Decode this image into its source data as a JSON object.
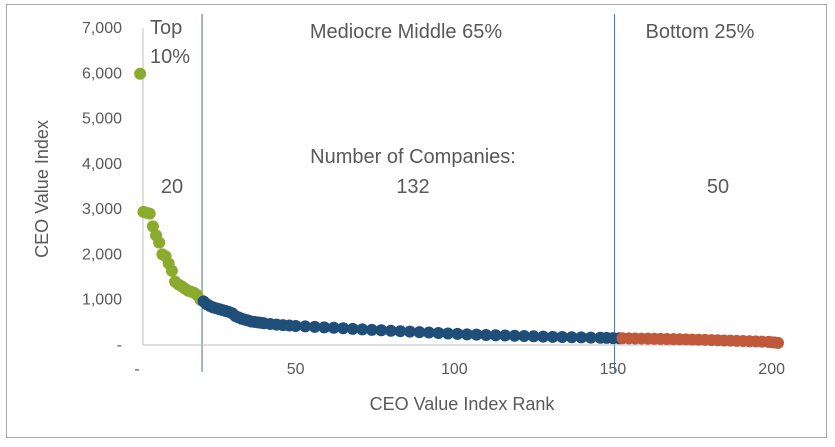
{
  "colors": {
    "top": "#8aab2e",
    "middle": "#1f4e79",
    "bottom": "#c0583a",
    "divider": "#4a6f9c",
    "axis": "#bfbfbf",
    "text": "#595959"
  },
  "chart_data": {
    "type": "scatter",
    "xlabel": "CEO Value Index Rank",
    "ylabel": "CEO Value Index",
    "xlim": [
      0,
      202
    ],
    "ylim": [
      0,
      7000
    ],
    "x_tick_labels": [
      "-",
      "50",
      "100",
      "150",
      "200"
    ],
    "x_tick_values": [
      0,
      50,
      100,
      150,
      200
    ],
    "y_tick_labels": [
      "-",
      "1,000",
      "2,000",
      "3,000",
      "4,000",
      "5,000",
      "6,000",
      "7,000"
    ],
    "y_tick_values": [
      0,
      1000,
      2000,
      3000,
      4000,
      5000,
      6000,
      7000
    ],
    "grid": false,
    "legend": "none",
    "dividers": [
      20,
      150
    ],
    "regions": [
      {
        "label_lines": [
          "Top",
          "10%"
        ],
        "count": "20"
      },
      {
        "label_lines": [
          "Mediocre Middle 65%"
        ],
        "count_heading": "Number of Companies:",
        "count": "132"
      },
      {
        "label_lines": [
          "Bottom 25%"
        ],
        "count": "50"
      }
    ],
    "series": [
      {
        "color_key": "top",
        "x": [
          1,
          2,
          3,
          4,
          5,
          6,
          7,
          8,
          9,
          10,
          11,
          12,
          13,
          14,
          15,
          16,
          17,
          18,
          19,
          20
        ],
        "y": [
          5990,
          2940,
          2920,
          2900,
          2620,
          2420,
          2260,
          2000,
          1960,
          1800,
          1640,
          1400,
          1340,
          1300,
          1250,
          1200,
          1180,
          1150,
          1100,
          1000
        ]
      },
      {
        "color_key": "middle",
        "points": [
          [
            21,
            960
          ],
          [
            22,
            900
          ],
          [
            23,
            860
          ],
          [
            24,
            830
          ],
          [
            25,
            810
          ],
          [
            26,
            790
          ],
          [
            27,
            770
          ],
          [
            28,
            750
          ],
          [
            29,
            730
          ],
          [
            30,
            700
          ],
          [
            31,
            640
          ],
          [
            32,
            610
          ],
          [
            33,
            580
          ],
          [
            34,
            560
          ],
          [
            35,
            540
          ],
          [
            36,
            520
          ],
          [
            37,
            510
          ],
          [
            38,
            500
          ],
          [
            39,
            490
          ],
          [
            40,
            480
          ],
          [
            42,
            465
          ],
          [
            44,
            450
          ],
          [
            46,
            440
          ],
          [
            48,
            430
          ],
          [
            50,
            420
          ],
          [
            53,
            410
          ],
          [
            56,
            400
          ],
          [
            59,
            390
          ],
          [
            62,
            380
          ],
          [
            65,
            370
          ],
          [
            68,
            355
          ],
          [
            71,
            345
          ],
          [
            74,
            335
          ],
          [
            77,
            325
          ],
          [
            80,
            315
          ],
          [
            83,
            305
          ],
          [
            86,
            295
          ],
          [
            89,
            285
          ],
          [
            92,
            275
          ],
          [
            95,
            265
          ],
          [
            98,
            255
          ],
          [
            101,
            245
          ],
          [
            104,
            235
          ],
          [
            107,
            228
          ],
          [
            110,
            222
          ],
          [
            113,
            216
          ],
          [
            116,
            210
          ],
          [
            119,
            204
          ],
          [
            122,
            198
          ],
          [
            125,
            192
          ],
          [
            128,
            186
          ],
          [
            131,
            180
          ],
          [
            134,
            176
          ],
          [
            137,
            172
          ],
          [
            140,
            168
          ],
          [
            143,
            164
          ],
          [
            146,
            160
          ],
          [
            148,
            156
          ],
          [
            150,
            152
          ],
          [
            152,
            150
          ]
        ]
      },
      {
        "color_key": "bottom",
        "points": [
          [
            153,
            148
          ],
          [
            155,
            146
          ],
          [
            157,
            144
          ],
          [
            159,
            142
          ],
          [
            161,
            140
          ],
          [
            163,
            138
          ],
          [
            165,
            136
          ],
          [
            167,
            133
          ],
          [
            169,
            130
          ],
          [
            171,
            127
          ],
          [
            173,
            124
          ],
          [
            175,
            120
          ],
          [
            177,
            116
          ],
          [
            179,
            112
          ],
          [
            181,
            108
          ],
          [
            183,
            104
          ],
          [
            185,
            100
          ],
          [
            187,
            96
          ],
          [
            189,
            92
          ],
          [
            191,
            88
          ],
          [
            193,
            84
          ],
          [
            195,
            80
          ],
          [
            197,
            74
          ],
          [
            199,
            68
          ],
          [
            200,
            62
          ],
          [
            201,
            55
          ],
          [
            202,
            48
          ]
        ]
      }
    ]
  }
}
